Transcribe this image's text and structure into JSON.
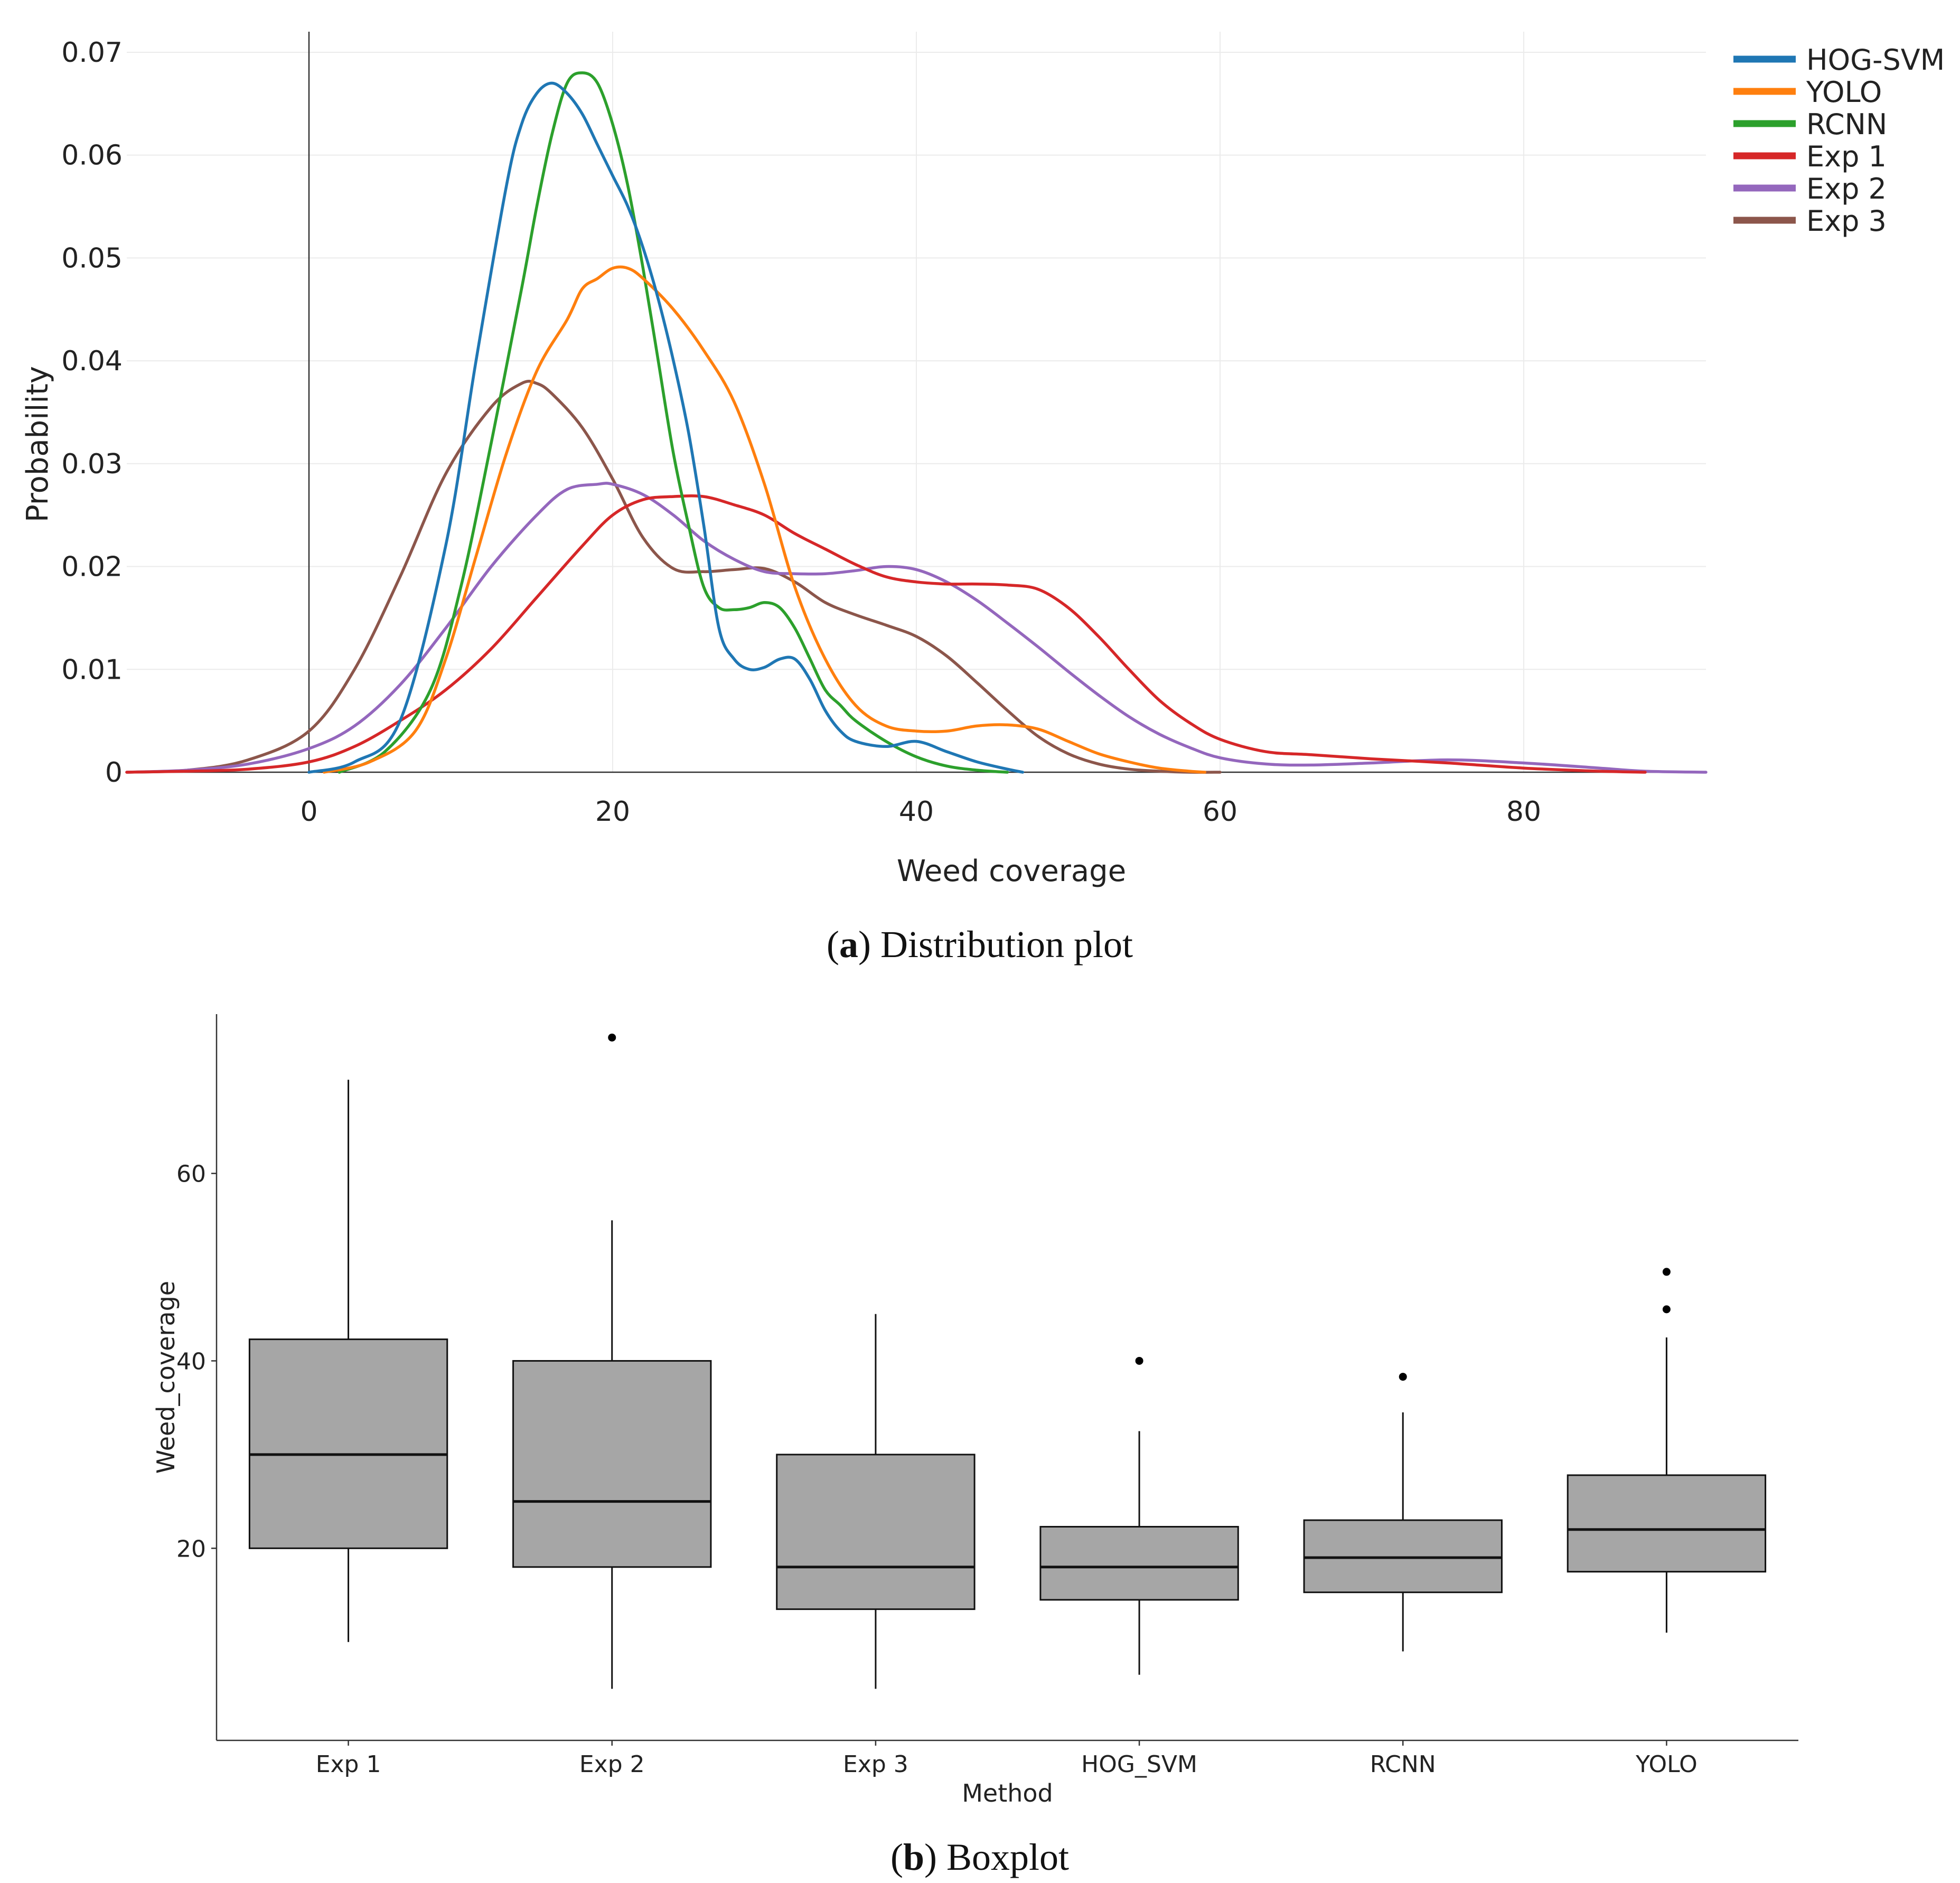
{
  "captions": {
    "a_letter": "a",
    "a_text": " Distribution plot",
    "b_letter": "b",
    "b_text": " Boxplot"
  },
  "chart_data": [
    {
      "type": "line",
      "xlabel": "Weed coverage",
      "ylabel": "Probability",
      "xlim": [
        -12,
        92
      ],
      "ylim": [
        0,
        0.072
      ],
      "x_ticks": [
        0,
        20,
        40,
        60,
        80
      ],
      "y_ticks": [
        0,
        0.01,
        0.02,
        0.03,
        0.04,
        0.05,
        0.06,
        0.07
      ],
      "y_tick_labels": [
        "0",
        "0.01",
        "0.02",
        "0.03",
        "0.04",
        "0.05",
        "0.06",
        "0.07"
      ],
      "grid": true,
      "legend_position": "top-right",
      "series": [
        {
          "name": "HOG-SVM",
          "color": "#1f77b4",
          "x": [
            0,
            3,
            6,
            9,
            11,
            13,
            14,
            15,
            16,
            17,
            18,
            19,
            20,
            21,
            22,
            23,
            24,
            25,
            26,
            27,
            28,
            29,
            30,
            31,
            32,
            33,
            34,
            35,
            36,
            38,
            40,
            42,
            44,
            46,
            47
          ],
          "y": [
            0,
            0.001,
            0.005,
            0.022,
            0.04,
            0.057,
            0.063,
            0.066,
            0.067,
            0.066,
            0.064,
            0.061,
            0.058,
            0.055,
            0.051,
            0.046,
            0.04,
            0.033,
            0.024,
            0.014,
            0.011,
            0.01,
            0.0102,
            0.011,
            0.011,
            0.009,
            0.006,
            0.004,
            0.003,
            0.0025,
            0.003,
            0.002,
            0.001,
            0.0003,
            0
          ]
        },
        {
          "name": "YOLO",
          "color": "#ff7f0e",
          "x": [
            1,
            4,
            7,
            9,
            11,
            13,
            15,
            17,
            18,
            19,
            20,
            21,
            22,
            24,
            26,
            28,
            30,
            32,
            34,
            36,
            38,
            40,
            42,
            44,
            46,
            48,
            50,
            52,
            54,
            56,
            58,
            59
          ],
          "y": [
            0,
            0.001,
            0.004,
            0.011,
            0.021,
            0.031,
            0.039,
            0.044,
            0.047,
            0.048,
            0.049,
            0.049,
            0.048,
            0.045,
            0.041,
            0.036,
            0.028,
            0.018,
            0.011,
            0.0065,
            0.0045,
            0.004,
            0.004,
            0.0045,
            0.0046,
            0.0042,
            0.003,
            0.0018,
            0.001,
            0.0004,
            0.0001,
            0
          ]
        },
        {
          "name": "RCNN",
          "color": "#2ca02c",
          "x": [
            2,
            5,
            8,
            10,
            12,
            14,
            15,
            16,
            17,
            18,
            19,
            20,
            21,
            22,
            23,
            24,
            25,
            26,
            27,
            28,
            29,
            30,
            31,
            32,
            33,
            34,
            35,
            36,
            38,
            40,
            42,
            44,
            46
          ],
          "y": [
            0,
            0.002,
            0.008,
            0.018,
            0.032,
            0.047,
            0.055,
            0.062,
            0.067,
            0.068,
            0.067,
            0.063,
            0.057,
            0.049,
            0.04,
            0.031,
            0.024,
            0.018,
            0.016,
            0.0158,
            0.016,
            0.0165,
            0.016,
            0.014,
            0.011,
            0.008,
            0.0065,
            0.005,
            0.003,
            0.0015,
            0.0006,
            0.0002,
            0
          ]
        },
        {
          "name": "Exp 1",
          "color": "#d62728",
          "x": [
            -12,
            -8,
            -4,
            0,
            3,
            6,
            9,
            12,
            15,
            18,
            20,
            22,
            24,
            26,
            28,
            30,
            32,
            34,
            36,
            38,
            40,
            42,
            44,
            46,
            48,
            50,
            52,
            54,
            56,
            58,
            60,
            63,
            66,
            70,
            75,
            80,
            85,
            88
          ],
          "y": [
            0,
            0.0001,
            0.0003,
            0.001,
            0.0025,
            0.005,
            0.008,
            0.012,
            0.017,
            0.022,
            0.025,
            0.0265,
            0.0268,
            0.0268,
            0.026,
            0.025,
            0.0232,
            0.0217,
            0.0202,
            0.019,
            0.0185,
            0.0183,
            0.0183,
            0.0182,
            0.0178,
            0.016,
            0.0132,
            0.01,
            0.007,
            0.0048,
            0.0032,
            0.002,
            0.0017,
            0.0013,
            0.0009,
            0.0004,
            0.0001,
            0
          ]
        },
        {
          "name": "Exp 2",
          "color": "#9467bd",
          "x": [
            -12,
            -8,
            -4,
            0,
            3,
            6,
            9,
            12,
            15,
            17,
            19,
            20,
            22,
            24,
            26,
            28,
            30,
            32,
            34,
            36,
            38,
            40,
            42,
            44,
            46,
            48,
            50,
            52,
            54,
            56,
            58,
            60,
            63,
            66,
            70,
            75,
            80,
            85,
            88,
            92
          ],
          "y": [
            0,
            0.0002,
            0.0008,
            0.0023,
            0.0045,
            0.0085,
            0.014,
            0.02,
            0.025,
            0.0275,
            0.028,
            0.028,
            0.027,
            0.025,
            0.0225,
            0.0207,
            0.0195,
            0.0193,
            0.0193,
            0.0196,
            0.02,
            0.0197,
            0.0185,
            0.0167,
            0.0145,
            0.0122,
            0.0098,
            0.0075,
            0.0054,
            0.0037,
            0.0024,
            0.0014,
            0.0008,
            0.0007,
            0.0009,
            0.0012,
            0.0009,
            0.0004,
            0.0001,
            0
          ]
        },
        {
          "name": "Exp 3",
          "color": "#8c564b",
          "x": [
            -12,
            -8,
            -4,
            0,
            3,
            6,
            9,
            12,
            14,
            15,
            16,
            18,
            20,
            22,
            24,
            26,
            28,
            30,
            32,
            34,
            36,
            38,
            40,
            42,
            44,
            46,
            48,
            50,
            52,
            54,
            56,
            58,
            60
          ],
          "y": [
            0,
            0.0002,
            0.0012,
            0.004,
            0.01,
            0.019,
            0.029,
            0.0355,
            0.0378,
            0.0378,
            0.0368,
            0.0335,
            0.0285,
            0.0228,
            0.0198,
            0.0195,
            0.0197,
            0.0198,
            0.0185,
            0.0165,
            0.0153,
            0.0143,
            0.0132,
            0.0113,
            0.0087,
            0.006,
            0.0035,
            0.0018,
            0.0008,
            0.0003,
            0.0001,
            0,
            0
          ]
        }
      ]
    },
    {
      "type": "box",
      "xlabel": "Method",
      "ylabel": "Weed_coverage",
      "ylim": [
        -0.5,
        77
      ],
      "y_ticks": [
        20,
        40,
        60
      ],
      "categories": [
        "Exp 1",
        "Exp 2",
        "Exp 3",
        "HOG_SVM",
        "RCNN",
        "YOLO"
      ],
      "boxes": [
        {
          "whislo": 10,
          "q1": 20,
          "median": 30,
          "q3": 42.3,
          "whishi": 70,
          "fliers": []
        },
        {
          "whislo": 5,
          "q1": 18,
          "median": 25,
          "q3": 40,
          "whishi": 55,
          "fliers": [
            74.5
          ]
        },
        {
          "whislo": 5,
          "q1": 13.5,
          "median": 18,
          "q3": 30,
          "whishi": 45,
          "fliers": []
        },
        {
          "whislo": 6.5,
          "q1": 14.5,
          "median": 18,
          "q3": 22.3,
          "whishi": 32.5,
          "fliers": [
            40
          ]
        },
        {
          "whislo": 9,
          "q1": 15.3,
          "median": 19,
          "q3": 23,
          "whishi": 34.5,
          "fliers": [
            38.3
          ]
        },
        {
          "whislo": 11,
          "q1": 17.5,
          "median": 22,
          "q3": 27.8,
          "whishi": 42.5,
          "fliers": [
            45.5,
            49.5
          ]
        }
      ],
      "box_color": "#a6a6a6"
    }
  ]
}
